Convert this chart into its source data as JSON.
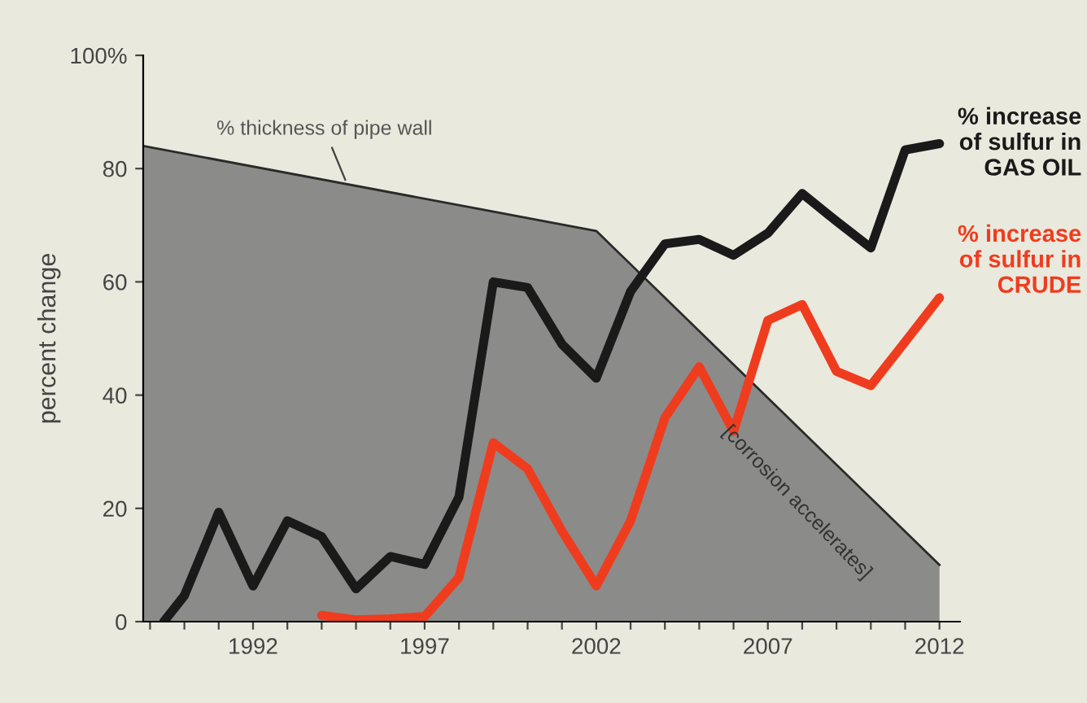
{
  "chart_data": {
    "type": "line",
    "ylabel": "percent change",
    "xlim": [
      1988.8,
      2012.6
    ],
    "xticks": [
      {
        "value": 1989,
        "label": null
      },
      {
        "value": 1990,
        "label": null
      },
      {
        "value": 1991,
        "label": null
      },
      1992,
      {
        "value": 1993,
        "label": null
      },
      {
        "value": 1994,
        "label": null
      },
      {
        "value": 1995,
        "label": null
      },
      {
        "value": 1996,
        "label": null
      },
      1997,
      {
        "value": 1998,
        "label": null
      },
      {
        "value": 1999,
        "label": null
      },
      {
        "value": 2000,
        "label": null
      },
      {
        "value": 2001,
        "label": null
      },
      2002,
      {
        "value": 2003,
        "label": null
      },
      {
        "value": 2004,
        "label": null
      },
      {
        "value": 2005,
        "label": null
      },
      {
        "value": 2006,
        "label": null
      },
      2007,
      {
        "value": 2008,
        "label": null
      },
      {
        "value": 2009,
        "label": null
      },
      {
        "value": 2010,
        "label": null
      },
      {
        "value": 2011,
        "label": null
      },
      2012
    ],
    "ylim": [
      0,
      100
    ],
    "yticks": [
      0,
      20,
      40,
      60,
      80,
      {
        "value": 100,
        "label": "100%"
      }
    ],
    "grid": false,
    "legend": false,
    "series": [
      {
        "name": "% thickness of pipe wall",
        "type": "area",
        "color": "#7a7a7a",
        "x": [
          1988.8,
          2002,
          2012
        ],
        "values": [
          84,
          69,
          10
        ]
      },
      {
        "name": "% increase\nof sulfur in\nGAS OIL",
        "color": "#1a1a1a",
        "x": [
          1989.4,
          1990,
          1991,
          1992,
          1993,
          1994,
          1995,
          1996,
          1997,
          1998,
          1999,
          2000,
          2001,
          2002,
          2003,
          2004,
          2005,
          2006,
          2007,
          2008,
          2009,
          2010,
          2011,
          2012
        ],
        "values": [
          0,
          4.6,
          19.3,
          6.3,
          17.8,
          15,
          5.8,
          11.5,
          10.1,
          22,
          60,
          59,
          49,
          43,
          58.3,
          66.7,
          67.5,
          64.7,
          68.6,
          75.6,
          70.7,
          66,
          83.3,
          84.4
        ]
      },
      {
        "name": "% increase\nof sulfur in\nCRUDE",
        "color": "#f03c1e",
        "x": [
          1994,
          1995,
          1996,
          1997,
          1998,
          1999,
          2000,
          2001,
          2002,
          2003,
          2004,
          2005,
          2006,
          2007,
          2008,
          2009,
          2010,
          2011,
          2012
        ],
        "values": [
          1.1,
          0.3,
          0.5,
          0.9,
          7.8,
          31.6,
          27,
          16,
          6.3,
          17.8,
          36,
          45,
          33.6,
          53.2,
          56,
          44.2,
          41.7,
          49.4,
          57.2
        ]
      }
    ],
    "annotations": [
      "[corrosion accelerates]"
    ]
  }
}
